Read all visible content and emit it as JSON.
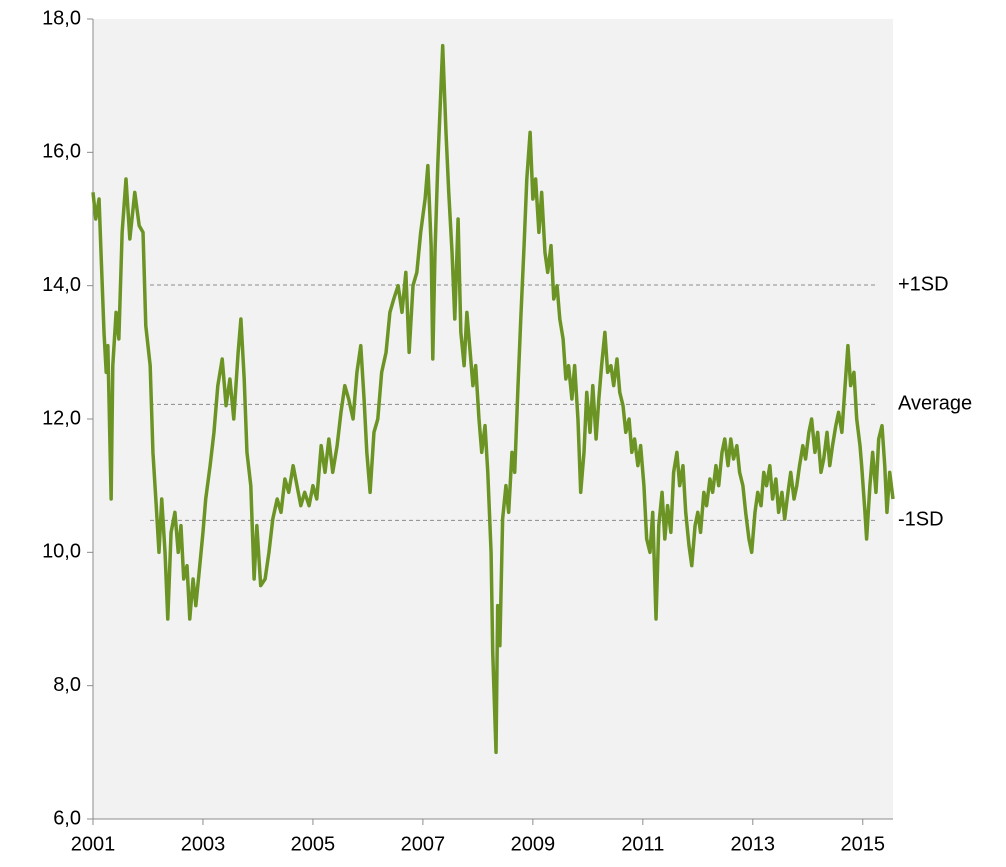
{
  "chart_data": {
    "type": "line",
    "color": "#6b9424",
    "xlim": [
      2001,
      2015.55
    ],
    "xticks": [
      2001,
      2003,
      2005,
      2007,
      2009,
      2011,
      2013,
      2015
    ],
    "ylim": [
      6,
      18
    ],
    "yticks": [
      {
        "value": 6,
        "label": "6,0"
      },
      {
        "value": 8,
        "label": "8,0"
      },
      {
        "value": 10,
        "label": "10,0"
      },
      {
        "value": 12,
        "label": "12,0"
      },
      {
        "value": 14,
        "label": "14,0"
      },
      {
        "value": 16,
        "label": "16,0"
      },
      {
        "value": 18,
        "label": "18,0"
      }
    ],
    "reference_lines": [
      {
        "label": "+1SD",
        "value": 14.01
      },
      {
        "label": "Average",
        "value": 12.22
      },
      {
        "label": "-1SD",
        "value": 10.48
      }
    ],
    "x": [
      2001.0,
      2001.05,
      2001.11,
      2001.15,
      2001.2,
      2001.24,
      2001.27,
      2001.33,
      2001.36,
      2001.42,
      2001.47,
      2001.53,
      2001.6,
      2001.67,
      2001.76,
      2001.84,
      2001.91,
      2001.96,
      2002.04,
      2002.09,
      2002.15,
      2002.2,
      2002.25,
      2002.31,
      2002.36,
      2002.42,
      2002.49,
      2002.55,
      2002.6,
      2002.65,
      2002.71,
      2002.76,
      2002.82,
      2002.87,
      2002.93,
      2003.0,
      2003.05,
      2003.13,
      2003.2,
      2003.27,
      2003.35,
      2003.42,
      2003.49,
      2003.56,
      2003.64,
      2003.69,
      2003.75,
      2003.8,
      2003.87,
      2003.93,
      2003.98,
      2004.05,
      2004.13,
      2004.2,
      2004.27,
      2004.35,
      2004.42,
      2004.49,
      2004.56,
      2004.64,
      2004.71,
      2004.78,
      2004.85,
      2004.93,
      2005.0,
      2005.07,
      2005.15,
      2005.22,
      2005.29,
      2005.36,
      2005.44,
      2005.51,
      2005.58,
      2005.65,
      2005.73,
      2005.8,
      2005.87,
      2005.93,
      2005.98,
      2006.04,
      2006.11,
      2006.18,
      2006.25,
      2006.33,
      2006.4,
      2006.47,
      2006.55,
      2006.62,
      2006.69,
      2006.75,
      2006.82,
      2006.89,
      2006.96,
      2007.04,
      2007.09,
      2007.15,
      2007.18,
      2007.22,
      2007.27,
      2007.33,
      2007.36,
      2007.42,
      2007.47,
      2007.53,
      2007.58,
      2007.64,
      2007.69,
      2007.75,
      2007.8,
      2007.85,
      2007.91,
      2007.96,
      2008.02,
      2008.07,
      2008.13,
      2008.18,
      2008.24,
      2008.27,
      2008.33,
      2008.36,
      2008.4,
      2008.45,
      2008.51,
      2008.56,
      2008.62,
      2008.67,
      2008.73,
      2008.78,
      2008.84,
      2008.89,
      2008.95,
      2009.0,
      2009.05,
      2009.11,
      2009.16,
      2009.22,
      2009.27,
      2009.33,
      2009.38,
      2009.44,
      2009.49,
      2009.55,
      2009.6,
      2009.65,
      2009.71,
      2009.76,
      2009.82,
      2009.87,
      2009.93,
      2009.98,
      2010.04,
      2010.09,
      2010.15,
      2010.2,
      2010.25,
      2010.31,
      2010.36,
      2010.42,
      2010.47,
      2010.53,
      2010.58,
      2010.64,
      2010.69,
      2010.75,
      2010.8,
      2010.85,
      2010.91,
      2010.96,
      2011.02,
      2011.07,
      2011.13,
      2011.18,
      2011.24,
      2011.29,
      2011.35,
      2011.4,
      2011.45,
      2011.51,
      2011.56,
      2011.62,
      2011.67,
      2011.73,
      2011.78,
      2011.84,
      2011.89,
      2011.95,
      2012.0,
      2012.05,
      2012.11,
      2012.16,
      2012.22,
      2012.27,
      2012.33,
      2012.38,
      2012.44,
      2012.49,
      2012.55,
      2012.6,
      2012.65,
      2012.71,
      2012.76,
      2012.82,
      2012.87,
      2012.93,
      2012.98,
      2013.04,
      2013.09,
      2013.15,
      2013.2,
      2013.25,
      2013.31,
      2013.36,
      2013.42,
      2013.47,
      2013.53,
      2013.58,
      2013.64,
      2013.69,
      2013.75,
      2013.8,
      2013.85,
      2013.91,
      2013.96,
      2014.02,
      2014.07,
      2014.13,
      2014.18,
      2014.24,
      2014.29,
      2014.35,
      2014.4,
      2014.45,
      2014.51,
      2014.56,
      2014.62,
      2014.67,
      2014.73,
      2014.78,
      2014.84,
      2014.89,
      2014.95,
      2014.98,
      2015.04,
      2015.07,
      2015.13,
      2015.18,
      2015.24,
      2015.29,
      2015.35,
      2015.4,
      2015.44,
      2015.49,
      2015.55
    ],
    "values": [
      15.4,
      15.0,
      15.3,
      14.4,
      13.3,
      12.7,
      13.1,
      10.8,
      12.8,
      13.6,
      13.2,
      14.8,
      15.6,
      14.7,
      15.4,
      14.9,
      14.8,
      13.4,
      12.8,
      11.5,
      10.7,
      10.0,
      10.8,
      10.0,
      9.0,
      10.3,
      10.6,
      10.0,
      10.4,
      9.6,
      9.8,
      9.0,
      9.6,
      9.2,
      9.7,
      10.3,
      10.8,
      11.3,
      11.8,
      12.5,
      12.9,
      12.2,
      12.6,
      12.0,
      13.0,
      13.5,
      12.6,
      11.5,
      11.0,
      9.6,
      10.4,
      9.5,
      9.6,
      10.0,
      10.5,
      10.8,
      10.6,
      11.1,
      10.9,
      11.3,
      11.0,
      10.7,
      10.9,
      10.7,
      11.0,
      10.8,
      11.6,
      11.2,
      11.7,
      11.2,
      11.6,
      12.1,
      12.5,
      12.3,
      12.0,
      12.7,
      13.1,
      12.3,
      11.5,
      10.9,
      11.8,
      12.0,
      12.7,
      13.0,
      13.6,
      13.8,
      14.0,
      13.6,
      14.2,
      13.0,
      14.0,
      14.2,
      14.8,
      15.3,
      15.8,
      14.6,
      12.9,
      14.5,
      15.8,
      17.0,
      17.6,
      16.3,
      15.4,
      14.5,
      13.5,
      15.0,
      13.3,
      12.8,
      13.6,
      13.1,
      12.5,
      12.8,
      12.0,
      11.5,
      11.9,
      11.2,
      10.0,
      8.5,
      7.0,
      9.2,
      8.6,
      10.5,
      11.0,
      10.6,
      11.5,
      11.2,
      12.5,
      13.5,
      14.6,
      15.6,
      16.3,
      15.3,
      15.6,
      14.8,
      15.4,
      14.5,
      14.2,
      14.6,
      13.8,
      14.0,
      13.5,
      13.2,
      12.6,
      12.8,
      12.3,
      12.8,
      12.0,
      10.9,
      11.5,
      12.4,
      11.8,
      12.5,
      11.7,
      12.3,
      12.8,
      13.3,
      12.7,
      12.8,
      12.5,
      12.9,
      12.4,
      12.2,
      11.8,
      12.0,
      11.5,
      11.7,
      11.3,
      11.6,
      11.0,
      10.2,
      10.0,
      10.6,
      9.0,
      10.4,
      10.9,
      10.2,
      10.7,
      10.3,
      11.2,
      11.5,
      11.0,
      11.3,
      10.6,
      10.1,
      9.8,
      10.4,
      10.6,
      10.3,
      10.9,
      10.7,
      11.1,
      10.9,
      11.3,
      11.0,
      11.5,
      11.7,
      11.3,
      11.7,
      11.4,
      11.6,
      11.2,
      11.0,
      10.6,
      10.2,
      10.0,
      10.6,
      10.9,
      10.7,
      11.2,
      11.0,
      11.3,
      10.8,
      11.1,
      10.6,
      10.9,
      10.5,
      10.9,
      11.2,
      10.8,
      11.0,
      11.3,
      11.6,
      11.4,
      11.8,
      12.0,
      11.5,
      11.8,
      11.2,
      11.4,
      11.8,
      11.3,
      11.6,
      11.9,
      12.1,
      11.8,
      12.4,
      13.1,
      12.5,
      12.7,
      12.0,
      11.6,
      11.3,
      10.6,
      10.2,
      11.0,
      11.5,
      10.9,
      11.7,
      11.9,
      11.3,
      10.6,
      11.2,
      10.8
    ]
  }
}
